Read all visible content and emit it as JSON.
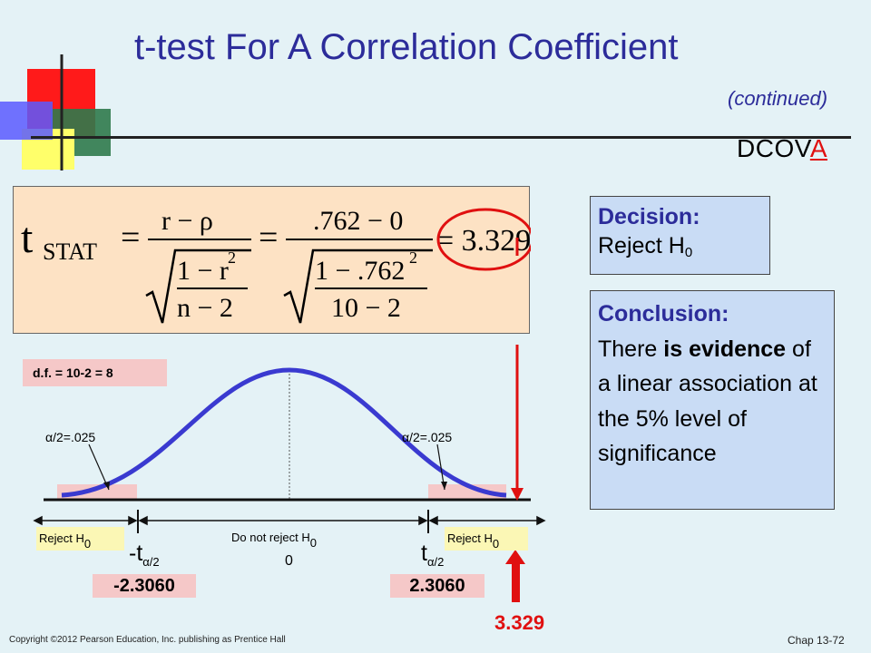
{
  "title": "t-test For A Correlation Coefficient",
  "subtitle": "(continued)",
  "dcova": {
    "prefix": "DCOV",
    "highlight": "A"
  },
  "formula": {
    "t": "t",
    "t_sub": "STAT",
    "eq": "=",
    "num1": "r − ρ",
    "rad_num1": "1 − r",
    "sq": "2",
    "rad_den1": "n − 2",
    "num2": ".762 − 0",
    "rad_num2": "1 − .762",
    "rad_den2": "10 − 2",
    "result": "= 3.329"
  },
  "decision": {
    "heading": "Decision:",
    "text": "Reject H",
    "sub": "0"
  },
  "conclusion": {
    "heading": "Conclusion:",
    "part1": "There ",
    "bold1": "is",
    "bold2": "evidence",
    "part2": " of a linear association at the 5% level of significance"
  },
  "df_label": "d.f. = 10-2 = 8",
  "alpha_left": "/2=.025",
  "alpha_right": "/2=.025",
  "alpha_symbol": "α",
  "reject_label": {
    "text": "Reject H",
    "sub": "0"
  },
  "do_not_reject": {
    "text": "Do not reject H",
    "sub": "0"
  },
  "center_value": "0",
  "crit_left": {
    "t": "-t",
    "sub": "α/2",
    "value": "-2.3060"
  },
  "crit_right": {
    "t": "t",
    "sub": "α/2",
    "value": "2.3060"
  },
  "test_stat": "3.329",
  "colors": {
    "title": "#2c2c9a",
    "curve": "#3a3ad0",
    "arrow": "#e01010",
    "decision_fill": "#c9dcf5",
    "formula_fill": "#fde2c4"
  },
  "footer": "Copyright ©2012 Pearson Education, Inc. publishing as Prentice Hall",
  "chapter": "Chap 13-72"
}
